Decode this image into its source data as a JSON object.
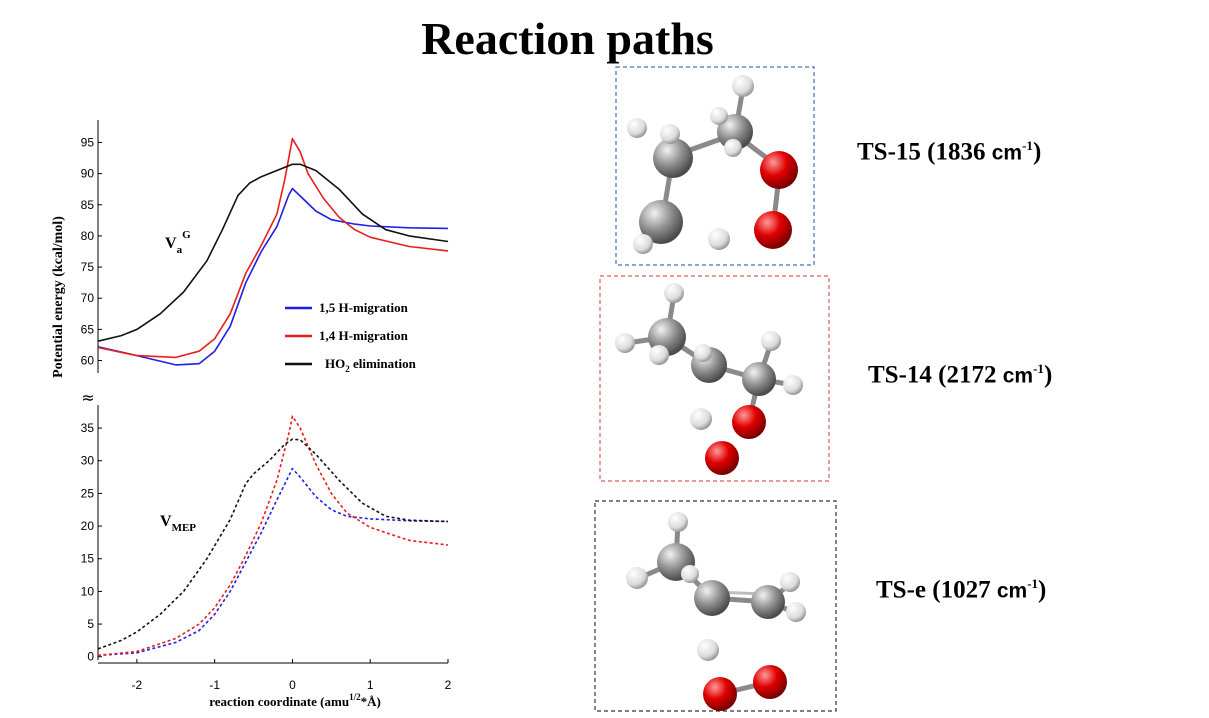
{
  "page": {
    "title": "Reaction paths"
  },
  "chart_data": {
    "type": "line",
    "ylabel": "Potential energy (kcal/mol)",
    "xlabel": "reaction coordinate (amu",
    "xlabel_sup": "1/2",
    "xlabel_tail": "*Å)",
    "xlim": [
      -2.5,
      2
    ],
    "x_ticks": [
      "-2",
      "-1",
      "0",
      "1",
      "2"
    ],
    "upper_panel": {
      "label_main": "V",
      "label_sub": "a",
      "label_sup": "G",
      "ylim": [
        58,
        97
      ],
      "y_ticks": [
        "60",
        "65",
        "70",
        "75",
        "80",
        "85",
        "90",
        "95"
      ],
      "series": [
        {
          "name": "1,5 H-migration",
          "color": "#1f1fe6",
          "points": [
            [
              -2.5,
              62.2
            ],
            [
              -2.0,
              60.8
            ],
            [
              -1.5,
              59.3
            ],
            [
              -1.2,
              59.5
            ],
            [
              -1.0,
              61.5
            ],
            [
              -0.8,
              65.5
            ],
            [
              -0.6,
              72.5
            ],
            [
              -0.4,
              77.5
            ],
            [
              -0.2,
              81.5
            ],
            [
              -0.05,
              86.5
            ],
            [
              0.0,
              87.6
            ],
            [
              0.1,
              86.4
            ],
            [
              0.3,
              84.0
            ],
            [
              0.5,
              82.6
            ],
            [
              0.8,
              81.9
            ],
            [
              1.0,
              81.6
            ],
            [
              1.5,
              81.3
            ],
            [
              2.0,
              81.2
            ]
          ]
        },
        {
          "name": "1,4 H-migration",
          "color": "#e61e1e",
          "points": [
            [
              -2.5,
              62.1
            ],
            [
              -2.0,
              60.8
            ],
            [
              -1.5,
              60.5
            ],
            [
              -1.2,
              61.5
            ],
            [
              -1.0,
              63.5
            ],
            [
              -0.8,
              67.5
            ],
            [
              -0.6,
              74.0
            ],
            [
              -0.4,
              78.5
            ],
            [
              -0.2,
              83.5
            ],
            [
              -0.1,
              89.0
            ],
            [
              0.0,
              95.6
            ],
            [
              0.1,
              93.5
            ],
            [
              0.2,
              90.0
            ],
            [
              0.4,
              86.0
            ],
            [
              0.6,
              83.0
            ],
            [
              0.8,
              81.0
            ],
            [
              1.0,
              79.8
            ],
            [
              1.5,
              78.3
            ],
            [
              2.0,
              77.6
            ]
          ]
        },
        {
          "name": "HO2 elimination",
          "color": "#111111",
          "points": [
            [
              -2.5,
              63.1
            ],
            [
              -2.2,
              64.0
            ],
            [
              -2.0,
              65.0
            ],
            [
              -1.7,
              67.5
            ],
            [
              -1.4,
              71.0
            ],
            [
              -1.1,
              76.0
            ],
            [
              -0.9,
              81.0
            ],
            [
              -0.7,
              86.5
            ],
            [
              -0.55,
              88.5
            ],
            [
              -0.4,
              89.5
            ],
            [
              -0.2,
              90.5
            ],
            [
              0.0,
              91.5
            ],
            [
              0.1,
              91.5
            ],
            [
              0.3,
              90.5
            ],
            [
              0.6,
              87.5
            ],
            [
              0.9,
              83.5
            ],
            [
              1.2,
              81.0
            ],
            [
              1.5,
              80.0
            ],
            [
              2.0,
              79.1
            ]
          ]
        }
      ]
    },
    "lower_panel": {
      "label_main": "V",
      "label_sub": "MEP",
      "ylim": [
        -0.5,
        37
      ],
      "y_ticks": [
        "0",
        "5",
        "10",
        "15",
        "20",
        "25",
        "30",
        "35"
      ],
      "series": [
        {
          "name": "1,5 H-migration",
          "color": "#1f1fe6",
          "points": [
            [
              -2.5,
              0.2
            ],
            [
              -2.0,
              0.6
            ],
            [
              -1.5,
              2.2
            ],
            [
              -1.2,
              4.0
            ],
            [
              -1.0,
              6.5
            ],
            [
              -0.8,
              10.0
            ],
            [
              -0.6,
              14.5
            ],
            [
              -0.4,
              19.0
            ],
            [
              -0.2,
              24.0
            ],
            [
              0.0,
              28.8
            ],
            [
              0.1,
              27.5
            ],
            [
              0.3,
              24.5
            ],
            [
              0.5,
              22.5
            ],
            [
              0.7,
              21.5
            ],
            [
              1.0,
              21.1
            ],
            [
              1.5,
              20.8
            ],
            [
              2.0,
              20.7
            ]
          ]
        },
        {
          "name": "1,4 H-migration",
          "color": "#e61e1e",
          "points": [
            [
              -2.5,
              0.2
            ],
            [
              -2.0,
              0.8
            ],
            [
              -1.5,
              2.8
            ],
            [
              -1.2,
              5.0
            ],
            [
              -1.0,
              7.5
            ],
            [
              -0.8,
              11.0
            ],
            [
              -0.6,
              15.5
            ],
            [
              -0.4,
              20.5
            ],
            [
              -0.2,
              27.0
            ],
            [
              -0.05,
              34.0
            ],
            [
              0.0,
              36.8
            ],
            [
              0.1,
              35.0
            ],
            [
              0.3,
              29.5
            ],
            [
              0.5,
              25.0
            ],
            [
              0.7,
              22.0
            ],
            [
              1.0,
              19.8
            ],
            [
              1.5,
              17.8
            ],
            [
              2.0,
              17.1
            ]
          ]
        },
        {
          "name": "HO2 elimination",
          "color": "#111111",
          "points": [
            [
              -2.5,
              1.2
            ],
            [
              -2.2,
              2.5
            ],
            [
              -2.0,
              3.8
            ],
            [
              -1.7,
              6.5
            ],
            [
              -1.4,
              10.0
            ],
            [
              -1.1,
              15.0
            ],
            [
              -0.8,
              21.0
            ],
            [
              -0.6,
              26.5
            ],
            [
              -0.5,
              28.0
            ],
            [
              -0.3,
              30.0
            ],
            [
              -0.1,
              32.5
            ],
            [
              0.0,
              33.3
            ],
            [
              0.1,
              33.2
            ],
            [
              0.3,
              31.0
            ],
            [
              0.6,
              27.0
            ],
            [
              0.9,
              23.5
            ],
            [
              1.2,
              21.5
            ],
            [
              1.5,
              20.9
            ],
            [
              2.0,
              20.7
            ]
          ]
        }
      ]
    },
    "legend": {
      "placement": "center-right of upper panel",
      "entries": [
        {
          "text": "1,5 H-migration",
          "color": "#1f1fe6"
        },
        {
          "text": "1,4 H-migration",
          "color": "#e61e1e"
        },
        {
          "text": "HO",
          "sub": "2",
          "tail": " elimination",
          "color": "#111111"
        }
      ]
    }
  },
  "transition_states": [
    {
      "name": "TS-15 (1836 ",
      "unit": "cm",
      "sup": "-1",
      "close": ")",
      "border_color": "#4a6fc2"
    },
    {
      "name": "TS-14 (2172 ",
      "unit": "cm",
      "sup": "-1",
      "close": ")",
      "border_color": "#e05a5a"
    },
    {
      "name": "TS-e (1027 ",
      "unit": "cm",
      "sup": "-1",
      "close": ")",
      "border_color": "#333333"
    }
  ]
}
